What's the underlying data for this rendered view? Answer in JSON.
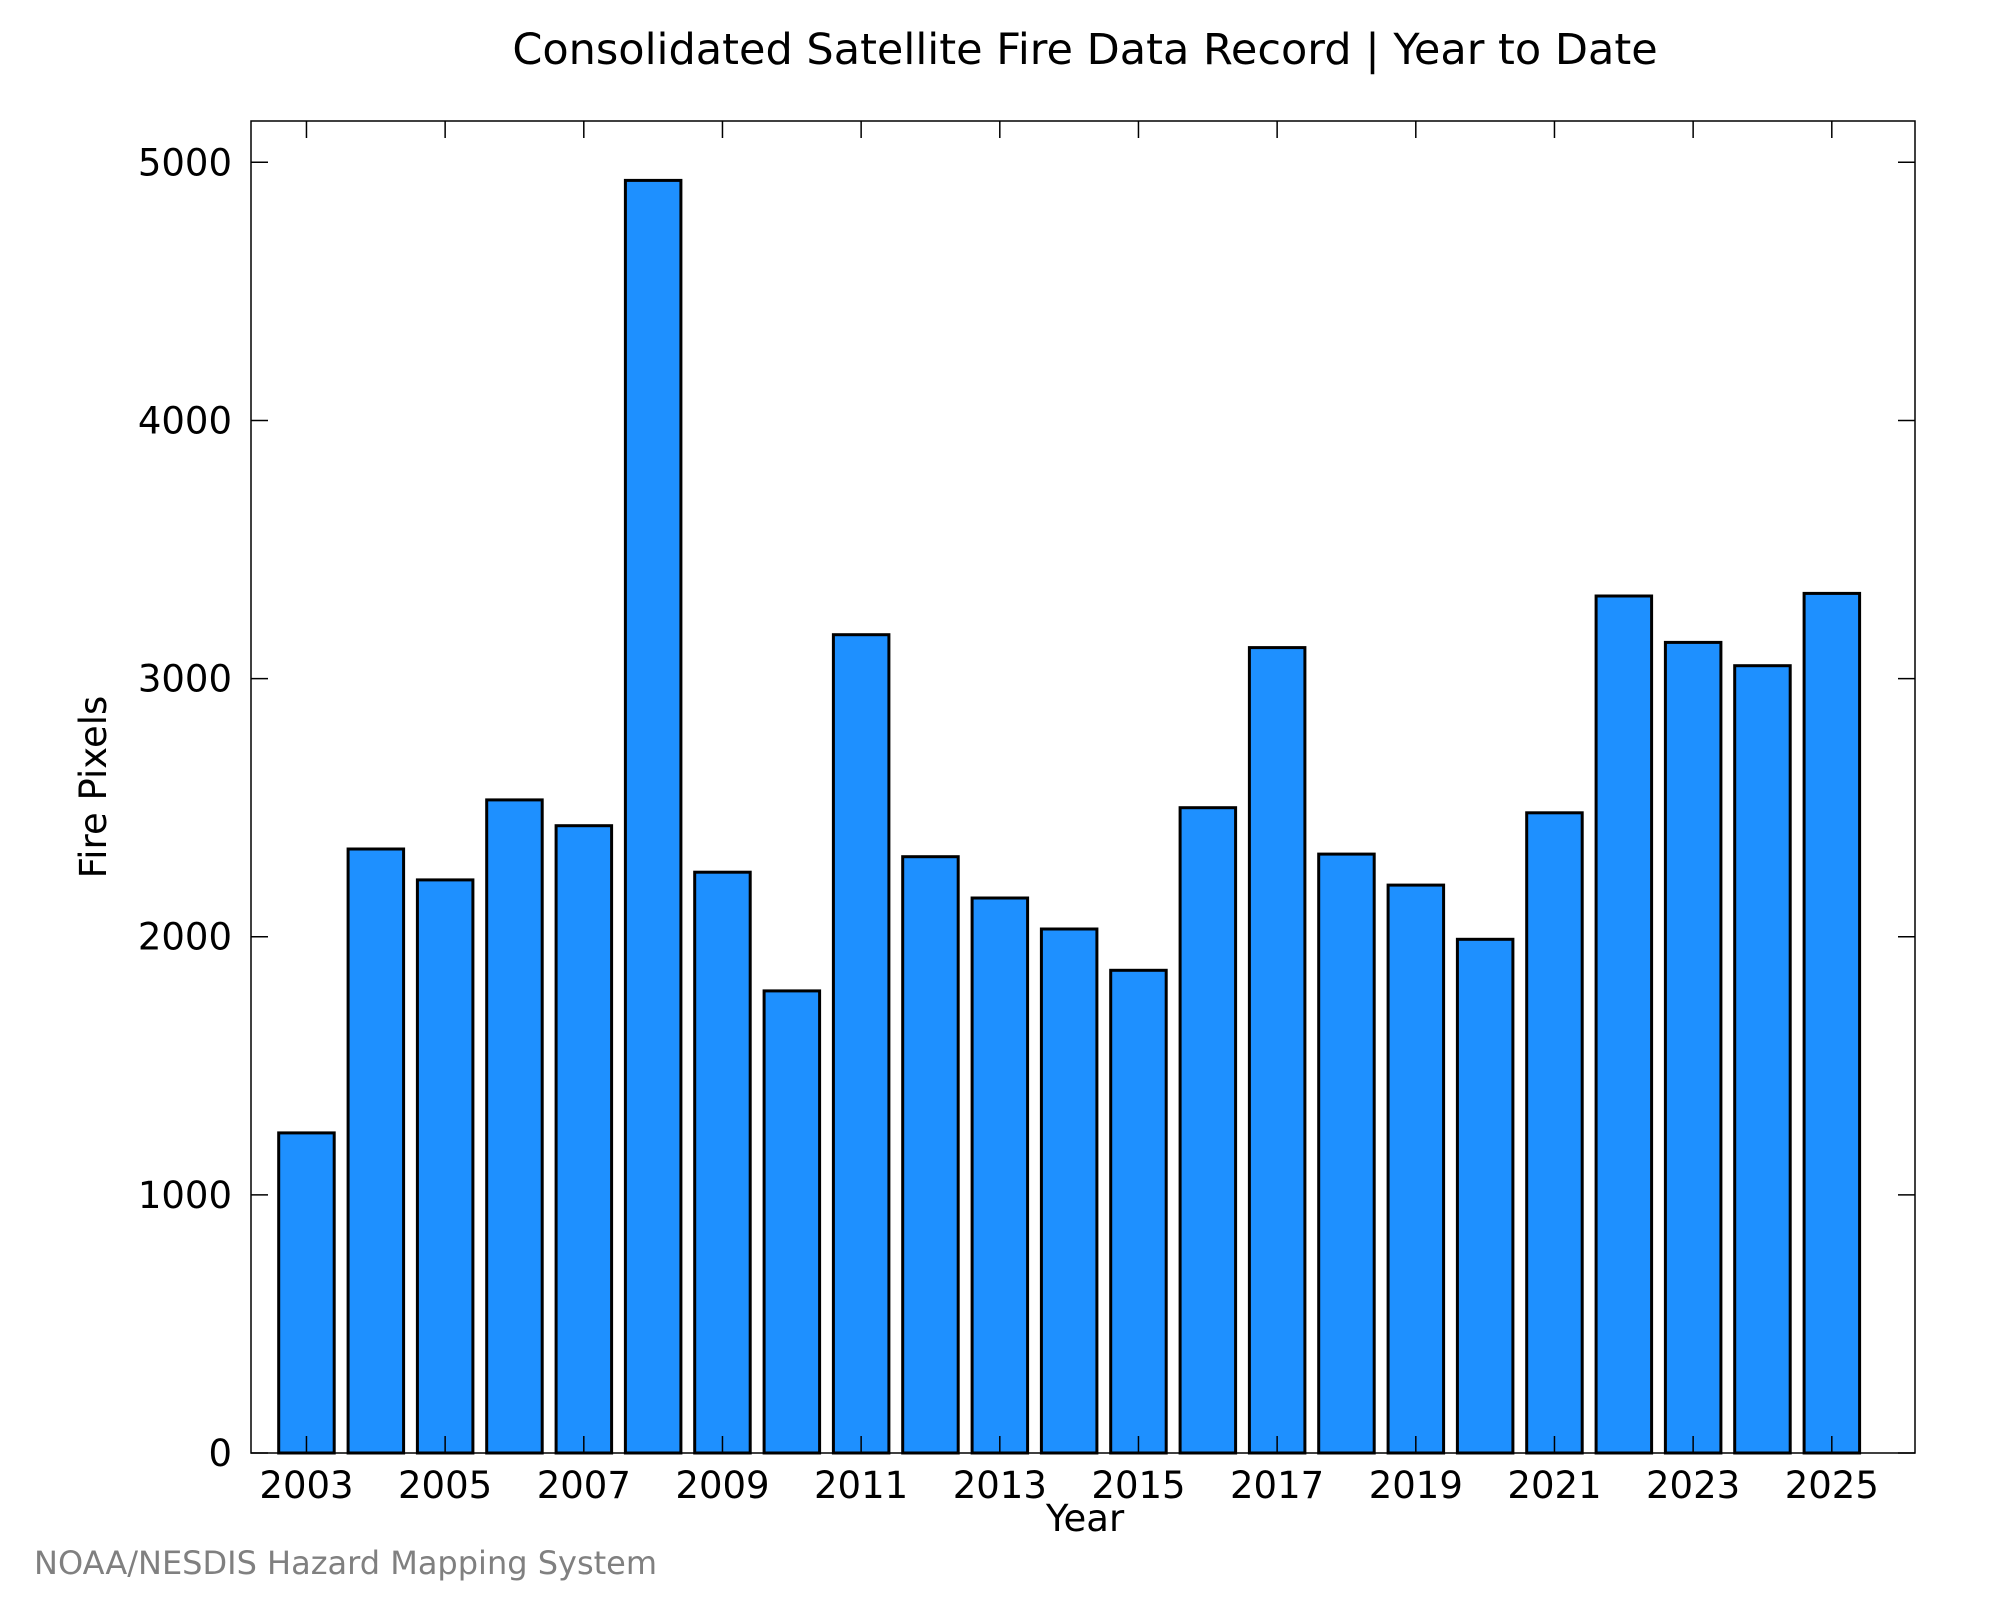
{
  "chart_data": {
    "type": "bar",
    "title": "Consolidated Satellite Fire Data Record | Year to Date",
    "xlabel": "Year",
    "ylabel": "Fire Pixels",
    "credit": "NOAA/NESDIS Hazard Mapping System",
    "categories": [
      2003,
      2004,
      2005,
      2006,
      2007,
      2008,
      2009,
      2010,
      2011,
      2012,
      2013,
      2014,
      2015,
      2016,
      2017,
      2018,
      2019,
      2020,
      2021,
      2022,
      2023,
      2024,
      2025
    ],
    "values": [
      1240,
      2340,
      2220,
      2530,
      2430,
      4930,
      2250,
      1790,
      3170,
      2310,
      2150,
      2030,
      1870,
      2500,
      3120,
      2320,
      2200,
      1990,
      2480,
      3320,
      3140,
      3050,
      3330
    ],
    "xtick_labels": [
      "2003",
      "2005",
      "2007",
      "2009",
      "2011",
      "2013",
      "2015",
      "2017",
      "2019",
      "2021",
      "2023",
      "2025"
    ],
    "ytick_labels": [
      "0",
      "1000",
      "2000",
      "3000",
      "4000",
      "5000"
    ],
    "yticks": [
      0,
      1000,
      2000,
      3000,
      4000,
      5000
    ],
    "ylim": [
      0,
      5160
    ],
    "xlim": [
      2002.2,
      2026.2
    ],
    "bar_color": "#1E90FF",
    "bar_edge_color": "#000000",
    "credit_color": "#808080",
    "grid": false,
    "legend": "none"
  }
}
